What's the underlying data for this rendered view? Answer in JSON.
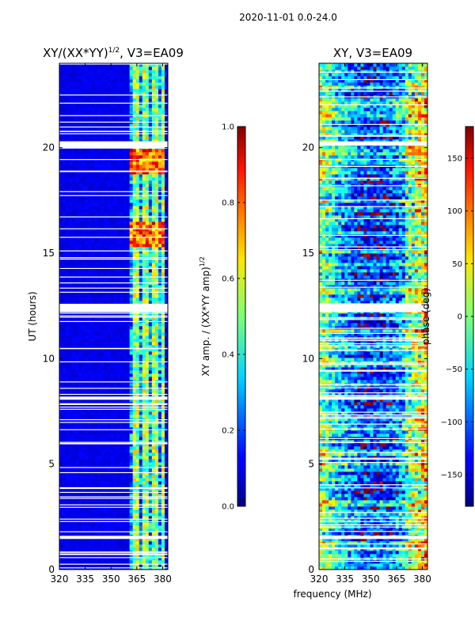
{
  "suptitle": "2020-11-01 0.0-24.0",
  "chart_data": [
    {
      "type": "heatmap",
      "title_main": "XY/(XX*YY)",
      "title_sup": "1/2",
      "title_tail": ", V3=EA09",
      "xlabel": "",
      "ylabel": "UT (hours)",
      "xlim": [
        320,
        383
      ],
      "ylim": [
        0,
        24
      ],
      "xticks": [
        "320",
        "335",
        "350",
        "365",
        "380"
      ],
      "xtick_values": [
        320,
        335,
        350,
        365,
        380
      ],
      "yticks": [
        "0",
        "5",
        "10",
        "15",
        "20"
      ],
      "ytick_values": [
        0,
        5,
        10,
        15,
        20
      ],
      "colorbar": {
        "label_main": "XY amp. / (XX*YY amp)",
        "label_sup": "1/2",
        "range": [
          0.0,
          1.0
        ],
        "ticks": [
          "0.0",
          "0.2",
          "0.4",
          "0.6",
          "0.8",
          "1.0"
        ],
        "tick_values": [
          0.0,
          0.2,
          0.4,
          0.6,
          0.8,
          1.0
        ]
      },
      "gaps_hours": [
        [
          1.45,
          1.6
        ],
        [
          8.05,
          8.2
        ],
        [
          12.2,
          12.6
        ],
        [
          20.1,
          20.3
        ]
      ],
      "bright_band_mhz": [
        360,
        382
      ],
      "high_amp_periods_hours": [
        [
          15.3,
          16.5
        ],
        [
          18.8,
          20.0
        ]
      ]
    },
    {
      "type": "heatmap",
      "title": "XY, V3=EA09",
      "xlabel": "frequency (MHz)",
      "ylabel": "",
      "xlim": [
        320,
        383
      ],
      "ylim": [
        0,
        24
      ],
      "xticks": [
        "320",
        "335",
        "350",
        "365",
        "380"
      ],
      "xtick_values": [
        320,
        335,
        350,
        365,
        380
      ],
      "yticks": [
        "0",
        "5",
        "10",
        "15",
        "20"
      ],
      "ytick_values": [
        0,
        5,
        10,
        15,
        20
      ],
      "colorbar": {
        "label": "phase (deg)",
        "range": [
          -180,
          180
        ],
        "ticks": [
          "150",
          "100",
          "50",
          "0",
          "−50",
          "−100",
          "−150"
        ],
        "tick_values": [
          150,
          100,
          50,
          0,
          -50,
          -100,
          -150
        ]
      },
      "gaps_hours": [
        [
          1.45,
          1.6
        ],
        [
          8.05,
          8.2
        ],
        [
          12.2,
          12.6
        ],
        [
          20.1,
          20.3
        ]
      ]
    }
  ]
}
